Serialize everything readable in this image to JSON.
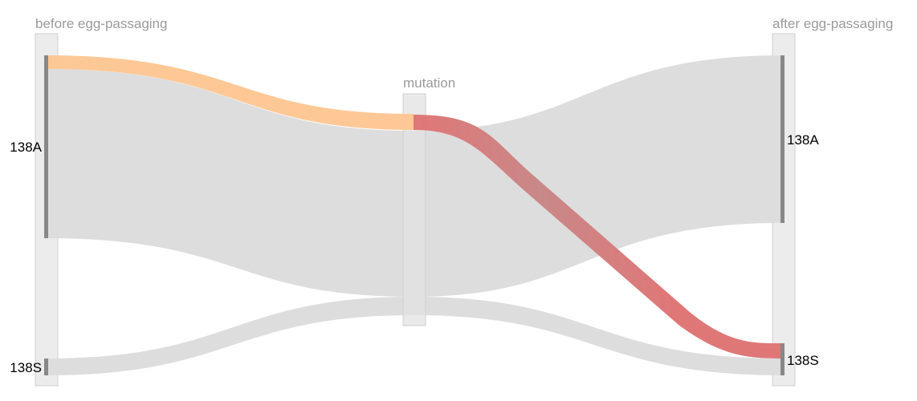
{
  "columns": [
    {
      "title": "before egg-passaging"
    },
    {
      "title": "mutation"
    },
    {
      "title": "after egg-passaging"
    }
  ],
  "nodes": {
    "before_138A": {
      "label": "138A"
    },
    "before_138S": {
      "label": "138S"
    },
    "after_138A": {
      "label": "138A"
    },
    "after_138S": {
      "label": "138S"
    }
  },
  "colors": {
    "axis_bg": "#ececec",
    "axis_border": "#cfcfcf",
    "node_bar": "#888888",
    "link_gray": "#dddddd",
    "link_orange": "#fdc896",
    "link_red": "#e07777",
    "link_red_mid": "#c98888"
  }
}
